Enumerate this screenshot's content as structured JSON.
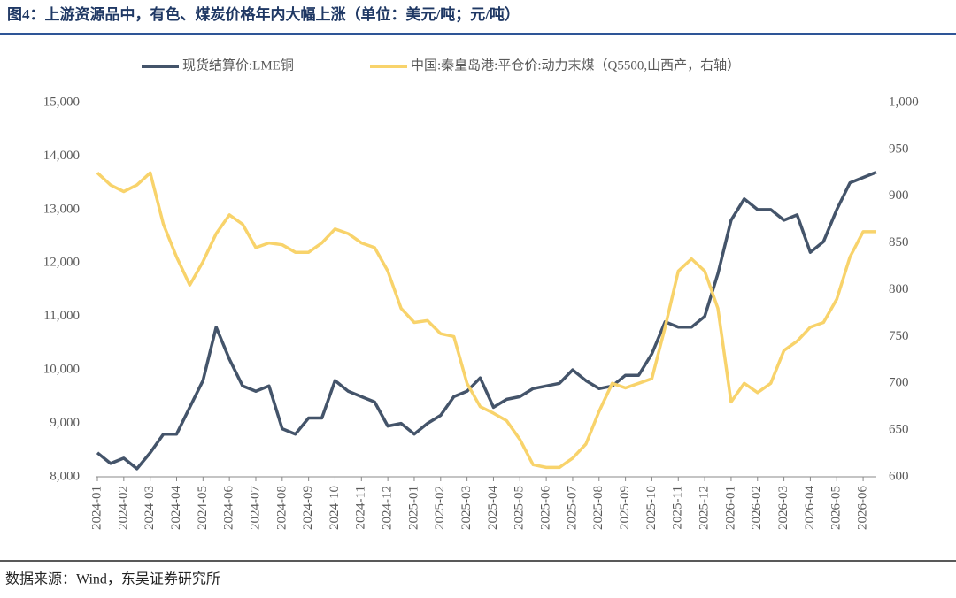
{
  "header": {
    "title": "图4：上游资源品中，有色、煤炭价格年内大幅上涨（单位：美元/吨；元/吨）"
  },
  "chart_data": {
    "type": "line",
    "categories": [
      "2024-01",
      null,
      "2024-02",
      null,
      "2024-03",
      null,
      "2024-04",
      null,
      "2024-05",
      null,
      "2024-06",
      null,
      "2024-07",
      null,
      "2024-08",
      null,
      "2024-09",
      null,
      "2024-10",
      null,
      "2024-11",
      null,
      "2024-12",
      null,
      "2025-01",
      null,
      "2025-02",
      null,
      "2025-03",
      null,
      "2025-04",
      null,
      "2025-05",
      null,
      "2025-06",
      null,
      "2025-07",
      null,
      "2025-08",
      null,
      "2025-09",
      null,
      "2025-10",
      null,
      "2025-11",
      null,
      "2025-12",
      null,
      "2026-01",
      null,
      "2026-02",
      null,
      "2026-03",
      null,
      "2026-04",
      null,
      "2026-05",
      null,
      "2026-06",
      null
    ],
    "series": [
      {
        "name": "现货结算价:LME铜",
        "color": "#44546a",
        "axis": "y",
        "values": [
          8450,
          8250,
          8350,
          8150,
          8450,
          8800,
          8800,
          9300,
          9800,
          10800,
          10200,
          9700,
          9600,
          9700,
          8900,
          8800,
          9100,
          9100,
          9800,
          9600,
          9500,
          9400,
          8950,
          9000,
          8800,
          9000,
          9150,
          9500,
          9600,
          9850,
          9300,
          9450,
          9500,
          9650,
          9700,
          9750,
          10000,
          9800,
          9650,
          9700,
          9900,
          9900,
          10300,
          10900,
          10800,
          10800,
          11000,
          11800,
          12800,
          13200,
          13000,
          13000,
          12800,
          12900,
          12200,
          12400,
          13000,
          13500,
          13600,
          13700
        ]
      },
      {
        "name": "中国:秦皇岛港:平仓价:动力末煤（Q5500,山西产，右轴）",
        "color": "#f8d36b",
        "axis": "y2",
        "values": [
          925,
          912,
          905,
          912,
          925,
          870,
          835,
          805,
          830,
          860,
          880,
          870,
          845,
          850,
          848,
          840,
          840,
          850,
          865,
          860,
          850,
          845,
          820,
          780,
          765,
          767,
          753,
          750,
          700,
          675,
          668,
          660,
          640,
          613,
          610,
          610,
          620,
          635,
          670,
          700,
          695,
          700,
          705,
          760,
          820,
          833,
          820,
          780,
          680,
          700,
          690,
          700,
          735,
          745,
          760,
          765,
          790,
          835,
          862,
          862
        ]
      }
    ],
    "ylim": [
      8000,
      15000
    ],
    "yticks": [
      {
        "value": 8000,
        "label": "8,000"
      },
      {
        "value": 9000,
        "label": "9,000"
      },
      {
        "value": 10000,
        "label": "10,000"
      },
      {
        "value": 11000,
        "label": "11,000"
      },
      {
        "value": 12000,
        "label": "12,000"
      },
      {
        "value": 13000,
        "label": "13,000"
      },
      {
        "value": 14000,
        "label": "14,000"
      },
      {
        "value": 15000,
        "label": "15,000"
      }
    ],
    "y2lim": [
      600,
      1000
    ],
    "y2ticks": [
      600,
      650,
      700,
      750,
      800,
      850,
      900,
      950,
      {
        "value": 1000,
        "label": "1,000"
      }
    ],
    "legend": "top",
    "grid": false
  },
  "footer": {
    "source": "数据来源：Wind，东吴证券研究所"
  }
}
